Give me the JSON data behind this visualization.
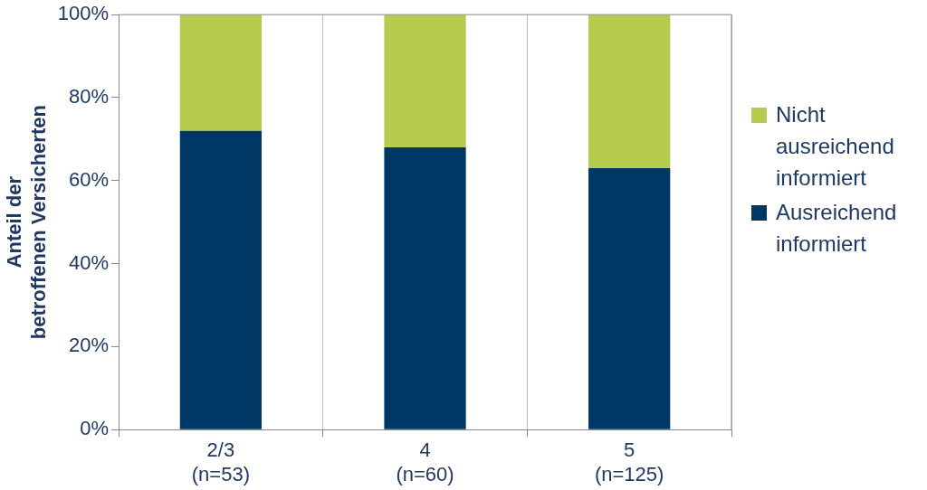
{
  "chart_data": {
    "type": "bar",
    "stacked": true,
    "ylabel": "Anteil der betroffenen Versicherten",
    "categories": [
      "2/3\n(n=53)",
      "4\n(n=60)",
      "5\n(n=125)"
    ],
    "series": [
      {
        "name": "Ausreichend informiert",
        "color": "#003865",
        "values": [
          72,
          68,
          63
        ]
      },
      {
        "name": "Nicht ausreichend informiert",
        "color": "#b5cc4f",
        "values": [
          28,
          32,
          37
        ]
      }
    ],
    "ylim": [
      0,
      100
    ],
    "yticks": [
      {
        "value": 0,
        "label": "0%"
      },
      {
        "value": 20,
        "label": "20%"
      },
      {
        "value": 40,
        "label": "40%"
      },
      {
        "value": 60,
        "label": "60%"
      },
      {
        "value": 80,
        "label": "80%"
      },
      {
        "value": 100,
        "label": "100%"
      }
    ],
    "grid": "x",
    "legend": "right"
  }
}
